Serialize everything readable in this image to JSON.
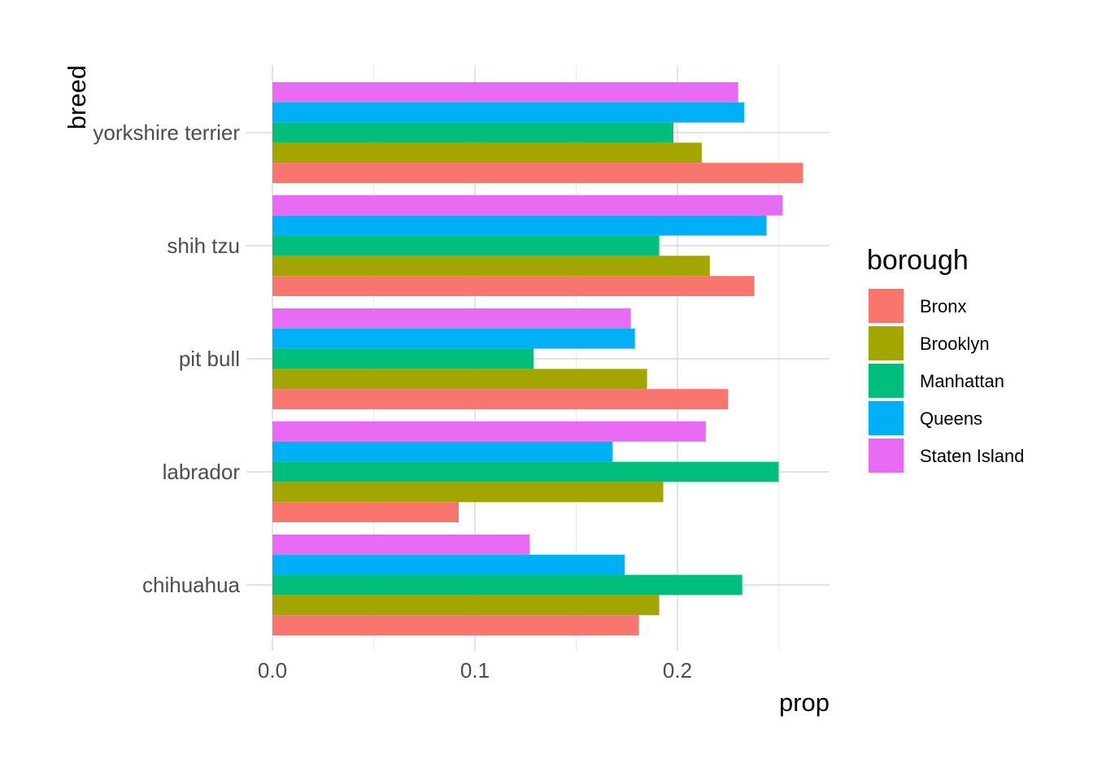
{
  "chart_data": {
    "type": "bar",
    "orientation": "horizontal",
    "categories": [
      "chihuahua",
      "labrador",
      "pit bull",
      "shih tzu",
      "yorkshire terrier"
    ],
    "series": [
      {
        "name": "Bronx",
        "color": "#F8766D",
        "values": [
          0.181,
          0.092,
          0.225,
          0.238,
          0.262
        ]
      },
      {
        "name": "Brooklyn",
        "color": "#A3A500",
        "values": [
          0.191,
          0.193,
          0.185,
          0.216,
          0.212
        ]
      },
      {
        "name": "Manhattan",
        "color": "#00BF7D",
        "values": [
          0.232,
          0.25,
          0.129,
          0.191,
          0.198
        ]
      },
      {
        "name": "Queens",
        "color": "#00B0F6",
        "values": [
          0.174,
          0.168,
          0.179,
          0.244,
          0.233
        ]
      },
      {
        "name": "Staten Island",
        "color": "#E76BF3",
        "values": [
          0.127,
          0.214,
          0.177,
          0.252,
          0.23
        ]
      }
    ],
    "x_ticks": [
      "0.0",
      "0.1",
      "0.2"
    ],
    "xlim": [
      0,
      0.275
    ],
    "xlabel": "prop",
    "ylabel": "breed",
    "legend_title": "borough",
    "legend_position": "right",
    "grid": true
  }
}
